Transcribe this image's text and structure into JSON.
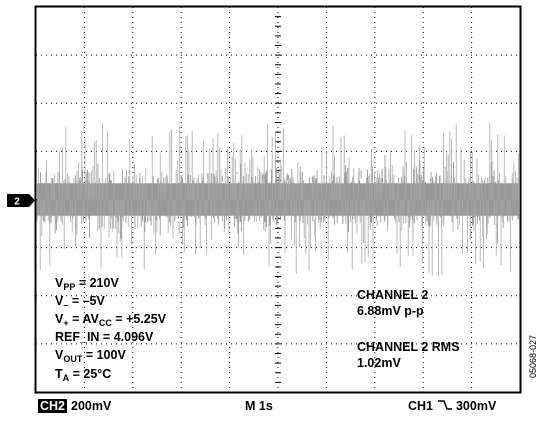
{
  "chart_data": {
    "type": "line",
    "title": "",
    "xlabel": "",
    "ylabel": "",
    "grid": true,
    "grid_divisions": {
      "x": 10,
      "y": 8
    },
    "series": [
      {
        "name": "",
        "color": "#999999",
        "description_values": {
          "center_div": 4.0,
          "band_halfwidth_div": 0.75,
          "peak_halfwidth_div": 1.6
        }
      }
    ]
  },
  "channel_marker": "2",
  "settings": {
    "vpp": {
      "label": "V",
      "sub": "PP",
      "value": " = 210V"
    },
    "vminus": {
      "label": "V",
      "sub": "–",
      "value": " = –5V"
    },
    "vplus": {
      "label": "V",
      "sub": "+",
      "value": " = AV",
      "sub2": "CC",
      "value2": " = +5.25V"
    },
    "refin": {
      "text": "REF_IN = 4.096V"
    },
    "vout": {
      "label": "V",
      "sub": "OUT",
      "value": " = 100V"
    },
    "ta": {
      "label": "T",
      "sub": "A",
      "value": " = 25°C"
    }
  },
  "measurements": {
    "ch2_title": "CHANNEL 2",
    "ch2_value": "6.88mV p-p",
    "rms_title": "CHANNEL 2 RMS",
    "rms_value": "1.02mV"
  },
  "bottom_bar": {
    "ch2_box": "CH2",
    "ch2_scale": "200mV",
    "timebase": "M 1s",
    "ch1": "CH1",
    "ch1_edge_icon": "falling-edge-icon",
    "ch1_level": "300mV"
  },
  "figure_id": "05068-027",
  "colors": {
    "trace": "#999999",
    "frame": "#000000",
    "grid": "#000000"
  }
}
